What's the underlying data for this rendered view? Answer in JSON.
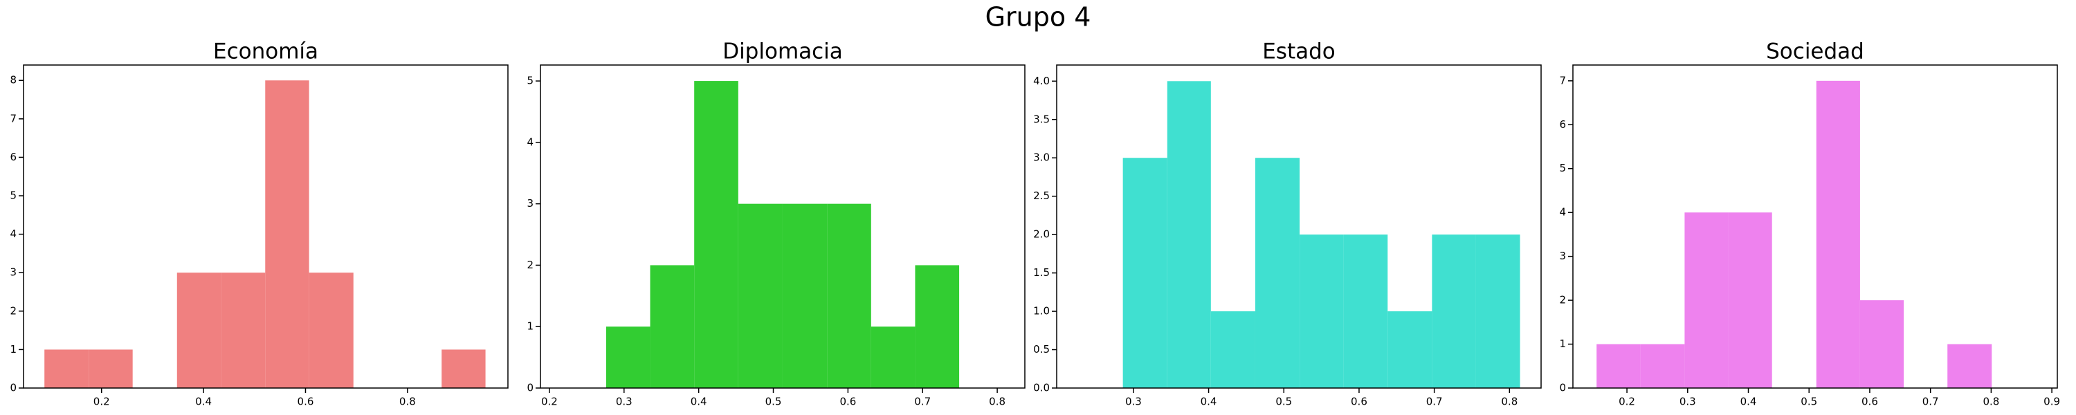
{
  "title": "Grupo 4",
  "chart_data": [
    {
      "type": "histogram",
      "title": "Economía",
      "color": "#f08080",
      "bins": [
        0.088,
        0.175,
        0.261,
        0.348,
        0.434,
        0.521,
        0.607,
        0.694,
        0.78,
        0.867,
        0.953
      ],
      "values": [
        1,
        1,
        0,
        3,
        3,
        8,
        3,
        0,
        0,
        1
      ],
      "xlim": [
        0.047,
        0.997
      ],
      "xticks": [
        0.2,
        0.4,
        0.6,
        0.8
      ],
      "ylim": [
        0,
        8.4
      ],
      "yticks": [
        0,
        1,
        2,
        3,
        4,
        5,
        6,
        7,
        8
      ]
    },
    {
      "type": "histogram",
      "title": "Diplomacia",
      "color": "#32cd32",
      "bins": [
        0.276,
        0.335,
        0.394,
        0.453,
        0.512,
        0.572,
        0.631,
        0.69,
        0.749
      ],
      "values": [
        1,
        2,
        5,
        3,
        3,
        3,
        1,
        2
      ],
      "xlim": [
        0.188,
        0.837
      ],
      "xticks": [
        0.2,
        0.3,
        0.4,
        0.5,
        0.6,
        0.7,
        0.8
      ],
      "ylim": [
        0,
        5.26
      ],
      "yticks": [
        0,
        1,
        2,
        3,
        4,
        5
      ]
    },
    {
      "type": "histogram",
      "title": "Estado",
      "color": "#40e0d0",
      "bins": [
        0.286,
        0.345,
        0.403,
        0.462,
        0.521,
        0.579,
        0.638,
        0.697,
        0.755,
        0.814
      ],
      "values": [
        3,
        4,
        1,
        3,
        2,
        2,
        1,
        2,
        2
      ],
      "xlim": [
        0.198,
        0.842
      ],
      "xticks": [
        0.3,
        0.4,
        0.5,
        0.6,
        0.7,
        0.8
      ],
      "ylim": [
        0,
        4.21
      ],
      "yticks": [
        {
          "value": 0,
          "label": "0.0"
        },
        {
          "value": 0.5,
          "label": "0.5"
        },
        {
          "value": 1,
          "label": "1.0"
        },
        {
          "value": 1.5,
          "label": "1.5"
        },
        {
          "value": 2,
          "label": "2.0"
        },
        {
          "value": 2.5,
          "label": "2.5"
        },
        {
          "value": 3,
          "label": "3.0"
        },
        {
          "value": 3.5,
          "label": "3.5"
        },
        {
          "value": 4,
          "label": "4.0"
        }
      ]
    },
    {
      "type": "histogram",
      "title": "Sociedad",
      "color": "#ee82ee",
      "bins": [
        0.15,
        0.222,
        0.295,
        0.367,
        0.439,
        0.512,
        0.584,
        0.656,
        0.728,
        0.801
      ],
      "values": [
        1,
        1,
        4,
        4,
        0,
        7,
        2,
        0,
        1
      ],
      "xlim": [
        0.111,
        0.909
      ],
      "xticks": [
        0.2,
        0.3,
        0.4,
        0.5,
        0.6,
        0.7,
        0.8,
        0.9
      ],
      "ylim": [
        0,
        7.36
      ],
      "yticks": [
        0,
        1,
        2,
        3,
        4,
        5,
        6,
        7
      ]
    }
  ]
}
